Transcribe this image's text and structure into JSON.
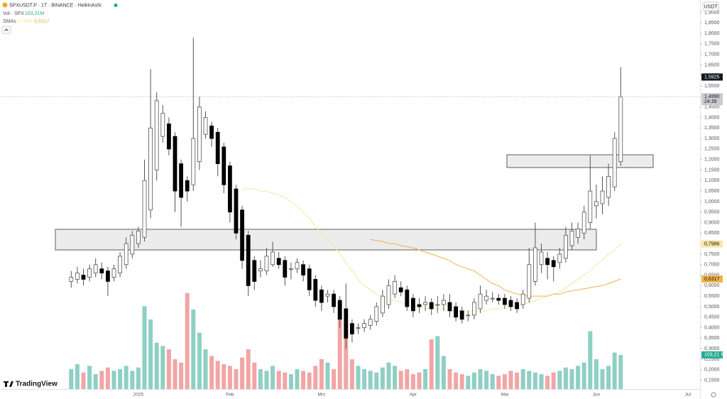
{
  "chart_data": {
    "type": "candlestick",
    "title": "SPXUSDT.P · 1T · BINANCE · HeikinAshi",
    "y_axis_label": "USDT",
    "categories": [
      null,
      null,
      null,
      null,
      null,
      null,
      null,
      null,
      null,
      null,
      null,
      "2025",
      null,
      null,
      null,
      null,
      null,
      null,
      null,
      null,
      null,
      null,
      null,
      null,
      null,
      null,
      "Feb",
      null,
      null,
      null,
      null,
      null,
      null,
      null,
      null,
      null,
      null,
      null,
      null,
      null,
      null,
      "Mrz",
      null,
      null,
      null,
      null,
      null,
      null,
      null,
      null,
      null,
      null,
      null,
      null,
      null,
      null,
      "Apr",
      null,
      null,
      null,
      null,
      null,
      null,
      null,
      null,
      null,
      null,
      null,
      null,
      null,
      null,
      "Mai",
      null,
      null,
      null,
      null,
      null,
      null,
      null,
      null,
      null,
      null,
      null,
      null,
      null,
      null,
      "Jun",
      null,
      null,
      null,
      null,
      null,
      null,
      null,
      null,
      null,
      null,
      null,
      null,
      null,
      null,
      "Jul"
    ],
    "open": [
      0.62,
      0.63,
      0.65,
      0.64,
      0.66,
      0.68,
      0.67,
      0.64,
      0.66,
      0.7,
      0.75,
      0.8,
      0.83,
      0.96,
      1.15,
      1.31,
      1.37,
      1.31,
      1.18,
      1.1,
      1.08,
      1.19,
      1.32,
      1.36,
      1.33,
      1.26,
      1.17,
      1.06,
      0.96,
      0.84,
      0.72,
      0.67,
      0.67,
      0.7,
      0.73,
      0.72,
      0.68,
      0.68,
      0.7,
      0.68,
      0.63,
      0.58,
      0.55,
      0.56,
      0.53,
      0.49,
      0.42,
      0.4,
      0.4,
      0.41,
      0.43,
      0.47,
      0.51,
      0.56,
      0.59,
      0.58,
      0.54,
      0.51,
      0.51,
      0.52,
      0.51,
      0.51,
      0.52,
      0.5,
      0.48,
      0.46,
      0.46,
      0.49,
      0.53,
      0.54,
      0.54,
      0.54,
      0.53,
      0.52,
      0.51,
      0.54,
      0.62,
      0.7,
      0.73,
      0.72,
      0.71,
      0.73,
      0.79,
      0.83,
      0.85,
      0.9,
      0.98,
      0.99,
      1.02,
      1.07,
      1.19,
      null,
      null,
      null,
      null,
      null,
      null,
      null,
      null,
      null,
      null,
      null
    ],
    "high": [
      0.67,
      0.69,
      0.68,
      0.7,
      0.73,
      0.71,
      0.69,
      0.7,
      0.76,
      0.83,
      0.86,
      0.88,
      1.2,
      1.63,
      1.52,
      1.46,
      1.4,
      1.33,
      1.2,
      1.12,
      1.78,
      1.5,
      1.43,
      1.38,
      1.35,
      1.28,
      1.19,
      1.08,
      0.98,
      0.86,
      0.74,
      0.72,
      0.78,
      0.81,
      0.76,
      0.74,
      0.71,
      0.73,
      0.72,
      0.7,
      0.65,
      0.6,
      0.58,
      0.58,
      0.55,
      0.61,
      0.44,
      0.42,
      0.44,
      0.46,
      0.52,
      0.58,
      0.63,
      0.65,
      0.62,
      0.6,
      0.56,
      0.54,
      0.55,
      0.54,
      0.55,
      0.56,
      0.56,
      0.52,
      0.5,
      0.48,
      0.54,
      0.6,
      0.58,
      0.57,
      0.56,
      0.56,
      0.55,
      0.54,
      0.58,
      0.78,
      0.9,
      0.8,
      0.76,
      0.74,
      0.78,
      0.88,
      0.9,
      0.9,
      0.98,
      1.22,
      1.08,
      1.12,
      1.18,
      1.33,
      1.64,
      null,
      null,
      null,
      null,
      null,
      null,
      null,
      null,
      null,
      null,
      null
    ],
    "low": [
      0.59,
      0.61,
      0.6,
      0.62,
      0.64,
      0.63,
      0.55,
      0.62,
      0.64,
      0.68,
      0.73,
      0.78,
      0.81,
      0.92,
      1.1,
      1.28,
      1.22,
      0.95,
      0.88,
      1.0,
      1.05,
      1.15,
      1.3,
      1.26,
      1.12,
      1.04,
      0.9,
      0.82,
      0.68,
      0.55,
      0.58,
      0.64,
      0.65,
      0.69,
      0.68,
      0.6,
      0.63,
      0.66,
      0.62,
      0.55,
      0.5,
      0.48,
      0.52,
      0.47,
      0.4,
      0.3,
      0.33,
      0.37,
      0.38,
      0.39,
      0.41,
      0.45,
      0.49,
      0.54,
      0.55,
      0.48,
      0.45,
      0.47,
      0.48,
      0.46,
      0.47,
      0.48,
      0.45,
      0.43,
      0.42,
      0.43,
      0.44,
      0.47,
      0.51,
      0.52,
      0.51,
      0.49,
      0.48,
      0.47,
      0.49,
      0.52,
      0.6,
      0.66,
      0.63,
      0.62,
      0.68,
      0.71,
      0.77,
      0.8,
      0.82,
      0.87,
      0.92,
      0.94,
      0.98,
      1.05,
      1.17,
      null,
      null,
      null,
      null,
      null,
      null,
      null,
      null,
      null,
      null,
      null
    ],
    "close": [
      0.64,
      0.66,
      0.63,
      0.68,
      0.7,
      0.66,
      0.62,
      0.68,
      0.74,
      0.8,
      0.84,
      0.86,
      1.1,
      1.35,
      1.48,
      1.42,
      1.25,
      1.05,
      1.02,
      1.05,
      1.3,
      1.45,
      1.4,
      1.3,
      1.18,
      1.08,
      0.95,
      0.85,
      0.72,
      0.6,
      0.62,
      0.68,
      0.74,
      0.76,
      0.7,
      0.64,
      0.68,
      0.71,
      0.65,
      0.58,
      0.53,
      0.52,
      0.56,
      0.5,
      0.44,
      0.35,
      0.37,
      0.4,
      0.42,
      0.44,
      0.5,
      0.55,
      0.6,
      0.62,
      0.57,
      0.5,
      0.48,
      0.5,
      0.52,
      0.49,
      0.51,
      0.53,
      0.48,
      0.45,
      0.44,
      0.46,
      0.52,
      0.56,
      0.55,
      0.54,
      0.53,
      0.51,
      0.5,
      0.49,
      0.56,
      0.7,
      0.78,
      0.76,
      0.7,
      0.69,
      0.75,
      0.84,
      0.86,
      0.87,
      0.95,
      1.05,
      1.0,
      1.05,
      1.12,
      1.3,
      1.499,
      null,
      null,
      null,
      null,
      null,
      null,
      null,
      null,
      null,
      null,
      null
    ],
    "last_close_label": "1,4990",
    "countdown": "24:39",
    "up_color": "#ffffff",
    "down_color": "#000000",
    "wick_color": "#555555",
    "price_markers": [
      {
        "value": 1.5925,
        "label": "1,5925"
      }
    ],
    "volume": {
      "name": "Vol · SPX",
      "header_label": "103,21M",
      "axis_label": "103,21 M",
      "up_color": "#8fcfc4",
      "down_color": "#f2a5a5",
      "ylim": [
        0,
        300
      ],
      "values": [
        60,
        75,
        50,
        70,
        45,
        55,
        65,
        55,
        60,
        70,
        55,
        65,
        250,
        210,
        140,
        130,
        120,
        90,
        80,
        290,
        240,
        170,
        120,
        100,
        85,
        75,
        70,
        60,
        95,
        120,
        80,
        60,
        55,
        70,
        55,
        50,
        45,
        60,
        55,
        50,
        70,
        90,
        80,
        60,
        260,
        200,
        90,
        70,
        60,
        55,
        50,
        65,
        80,
        70,
        55,
        60,
        45,
        50,
        60,
        150,
        160,
        100,
        60,
        50,
        45,
        40,
        50,
        60,
        55,
        45,
        40,
        45,
        55,
        50,
        60,
        55,
        50,
        45,
        40,
        50,
        55,
        65,
        60,
        70,
        80,
        175,
        90,
        60,
        70,
        110,
        103.21,
        null,
        null,
        null,
        null,
        null,
        null,
        null,
        null,
        null,
        null,
        null
      ]
    },
    "sma_title": "SMAs",
    "series": [
      {
        "color": "#f6e6a2",
        "last_label": "0,7986",
        "values": [
          null,
          null,
          null,
          null,
          null,
          null,
          null,
          null,
          null,
          null,
          null,
          null,
          null,
          null,
          null,
          null,
          null,
          null,
          null,
          null,
          null,
          null,
          null,
          null,
          null,
          null,
          null,
          null,
          1.06,
          1.06,
          1.06,
          1.05,
          1.05,
          1.04,
          1.03,
          1.02,
          1.0,
          0.98,
          0.95,
          0.92,
          0.88,
          0.85,
          0.82,
          0.79,
          0.75,
          0.71,
          0.67,
          0.63,
          0.6,
          0.58,
          0.56,
          0.55,
          0.54,
          0.53,
          0.52,
          0.51,
          0.5,
          0.5,
          0.49,
          0.49,
          0.49,
          0.49,
          0.48,
          0.48,
          0.48,
          0.48,
          0.48,
          0.48,
          0.48,
          0.49,
          0.49,
          0.49,
          0.5,
          0.5,
          0.51,
          0.52,
          0.53,
          0.54,
          0.55,
          0.56,
          0.57,
          0.59,
          0.61,
          0.63,
          0.65,
          0.67,
          0.7,
          0.72,
          0.75,
          0.77,
          0.7986,
          null,
          null,
          null,
          null,
          null,
          null,
          null,
          null,
          null,
          null,
          null
        ]
      },
      {
        "color": "#f0b24a",
        "last_label": "0,6317",
        "values": [
          null,
          null,
          null,
          null,
          null,
          null,
          null,
          null,
          null,
          null,
          null,
          null,
          null,
          null,
          null,
          null,
          null,
          null,
          null,
          null,
          null,
          null,
          null,
          null,
          null,
          null,
          null,
          null,
          null,
          null,
          null,
          null,
          null,
          null,
          null,
          null,
          null,
          null,
          null,
          null,
          null,
          null,
          null,
          null,
          null,
          null,
          null,
          null,
          null,
          0.82,
          0.815,
          0.81,
          0.8,
          0.8,
          0.79,
          0.785,
          0.78,
          0.77,
          0.76,
          0.75,
          0.74,
          0.73,
          0.72,
          0.7,
          0.69,
          0.68,
          0.67,
          0.65,
          0.63,
          0.61,
          0.6,
          0.58,
          0.57,
          0.56,
          0.555,
          0.55,
          0.55,
          0.55,
          0.55,
          0.56,
          0.56,
          0.57,
          0.575,
          0.58,
          0.585,
          0.59,
          0.595,
          0.6,
          0.61,
          0.62,
          0.6317,
          null,
          null,
          null,
          null,
          null,
          null,
          null,
          null,
          null,
          null,
          null
        ]
      }
    ],
    "ylim": [
      0.108,
      1.959
    ],
    "yticks": [
      {
        "value": 0.15,
        "label": "0,1500"
      },
      {
        "value": 0.2,
        "label": "0,2000"
      },
      {
        "value": 0.25,
        "label": "0,2500"
      },
      {
        "value": 0.3,
        "label": "0,3000"
      },
      {
        "value": 0.35,
        "label": "0,3500"
      },
      {
        "value": 0.4,
        "label": "0,4000"
      },
      {
        "value": 0.45,
        "label": "0,4500"
      },
      {
        "value": 0.5,
        "label": "0,5000"
      },
      {
        "value": 0.55,
        "label": "0,5500"
      },
      {
        "value": 0.6,
        "label": "0,6000"
      },
      {
        "value": 0.65,
        "label": "0,6500"
      },
      {
        "value": 0.7,
        "label": "0,7000"
      },
      {
        "value": 0.75,
        "label": "0,7500"
      },
      {
        "value": 0.8,
        "label": "0,8000"
      },
      {
        "value": 0.85,
        "label": "0,8500"
      },
      {
        "value": 0.9,
        "label": "0,9000"
      },
      {
        "value": 0.95,
        "label": "0,9500"
      },
      {
        "value": 1.0,
        "label": "1,0000"
      },
      {
        "value": 1.05,
        "label": "1,0500"
      },
      {
        "value": 1.1,
        "label": "1,1000"
      },
      {
        "value": 1.15,
        "label": "1,1500"
      },
      {
        "value": 1.2,
        "label": "1,2000"
      },
      {
        "value": 1.25,
        "label": "1,2500"
      },
      {
        "value": 1.3,
        "label": "1,3000"
      },
      {
        "value": 1.35,
        "label": "1,3500"
      },
      {
        "value": 1.4,
        "label": "1,4000"
      },
      {
        "value": 1.45,
        "label": "1,4500"
      },
      {
        "value": 1.5,
        "label": "1,5000"
      },
      {
        "value": 1.55,
        "label": "1,5500"
      },
      {
        "value": 1.6,
        "label": "1,6000"
      },
      {
        "value": 1.65,
        "label": "1,6500"
      },
      {
        "value": 1.7,
        "label": "1,7000"
      },
      {
        "value": 1.75,
        "label": "1,7500"
      },
      {
        "value": 1.8,
        "label": "1,8000"
      },
      {
        "value": 1.85,
        "label": "1,8500"
      },
      {
        "value": 1.9,
        "label": "1,9000"
      }
    ],
    "grid": false,
    "logo": "TradingView"
  }
}
